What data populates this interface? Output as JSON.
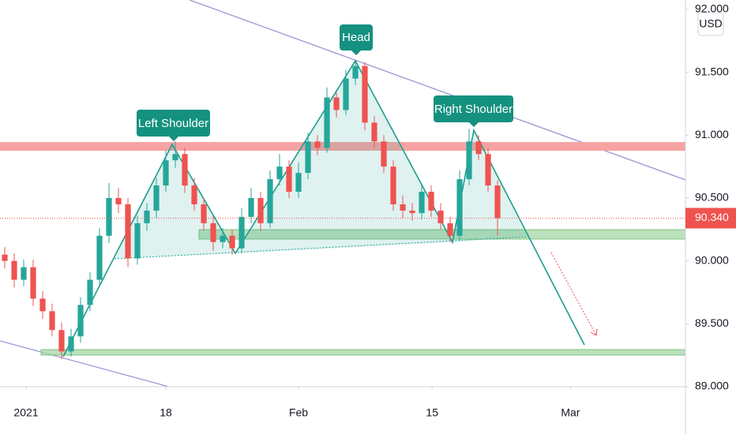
{
  "chart_data": {
    "type": "candlestick",
    "currency": "USD",
    "annotations": [
      "Left Shoulder",
      "Head",
      "Right Shoulder"
    ],
    "up_color": "#26a69a",
    "down_color": "#ef5350",
    "x": [
      0,
      1,
      2,
      3,
      4,
      5,
      6,
      7,
      8,
      9,
      10,
      11,
      12,
      13,
      14,
      15,
      16,
      17,
      18,
      19,
      20,
      21,
      22,
      23,
      24,
      25,
      26,
      27,
      28,
      29,
      30,
      31,
      32,
      33,
      34,
      35,
      36,
      37,
      38,
      39,
      40,
      41,
      42,
      43,
      44,
      45,
      46,
      47,
      48,
      49,
      50,
      51,
      52
    ],
    "open": [
      90.05,
      90.0,
      89.85,
      89.95,
      89.7,
      89.6,
      89.45,
      89.28,
      89.4,
      89.65,
      89.85,
      90.2,
      90.5,
      90.45,
      90.02,
      90.3,
      90.4,
      90.6,
      90.8,
      90.85,
      90.6,
      90.45,
      90.3,
      90.15,
      90.2,
      90.1,
      90.35,
      90.5,
      90.3,
      90.65,
      90.75,
      90.55,
      90.7,
      90.95,
      90.9,
      91.3,
      91.2,
      91.45,
      91.55,
      91.1,
      90.95,
      90.75,
      90.45,
      90.4,
      90.38,
      90.55,
      90.4,
      90.3,
      90.2,
      90.65,
      90.95,
      90.85,
      90.6
    ],
    "high": [
      90.11,
      90.06,
      90.01,
      90.01,
      89.76,
      89.66,
      89.51,
      89.46,
      89.71,
      89.91,
      90.26,
      90.62,
      90.58,
      90.5,
      90.36,
      90.46,
      90.66,
      90.88,
      90.95,
      90.9,
      90.66,
      90.5,
      90.36,
      90.26,
      90.25,
      90.42,
      90.58,
      90.55,
      90.72,
      90.85,
      90.8,
      90.78,
      91.02,
      91.0,
      91.38,
      91.34,
      91.52,
      91.6,
      91.58,
      91.15,
      91.0,
      90.8,
      90.52,
      90.46,
      90.6,
      90.6,
      90.46,
      90.35,
      90.72,
      91.05,
      91.0,
      90.9,
      90.64
    ],
    "low": [
      89.94,
      89.79,
      89.8,
      89.64,
      89.54,
      89.4,
      89.22,
      89.24,
      89.35,
      89.6,
      89.8,
      90.14,
      90.38,
      89.95,
      89.97,
      90.24,
      90.34,
      90.55,
      90.74,
      90.54,
      90.4,
      90.24,
      90.08,
      90.1,
      90.05,
      90.06,
      90.3,
      90.24,
      90.26,
      90.6,
      90.5,
      90.5,
      90.65,
      90.84,
      90.86,
      91.14,
      91.16,
      91.4,
      91.04,
      90.9,
      90.7,
      90.4,
      90.34,
      90.32,
      90.33,
      90.35,
      90.25,
      90.15,
      90.16,
      90.6,
      90.8,
      90.55,
      90.2
    ],
    "close": [
      90.0,
      89.85,
      89.95,
      89.7,
      89.6,
      89.45,
      89.28,
      89.4,
      89.65,
      89.85,
      90.2,
      90.5,
      90.45,
      90.02,
      90.3,
      90.4,
      90.6,
      90.8,
      90.85,
      90.6,
      90.45,
      90.3,
      90.15,
      90.2,
      90.1,
      90.35,
      90.5,
      90.3,
      90.65,
      90.75,
      90.55,
      90.7,
      90.95,
      90.9,
      91.3,
      91.2,
      91.45,
      91.55,
      91.1,
      90.95,
      90.75,
      90.45,
      90.4,
      90.38,
      90.55,
      90.4,
      90.3,
      90.2,
      90.65,
      90.95,
      90.85,
      90.6,
      90.34
    ],
    "last_value": 90.34,
    "last_value_label": "90.340",
    "xlim": [
      -0.5,
      71.83
    ],
    "xticks": [
      {
        "value": 2.25,
        "label": "2021"
      },
      {
        "value": 17,
        "label": "18"
      },
      {
        "value": 31,
        "label": "Feb"
      },
      {
        "value": 45.1,
        "label": "15"
      },
      {
        "value": 59.7,
        "label": "Mar"
      }
    ],
    "ylim": [
      89.0,
      92.075
    ],
    "yticks": [
      {
        "value": 89.0,
        "label": "89.000"
      },
      {
        "value": 89.5,
        "label": "89.500"
      },
      {
        "value": 90.0,
        "label": "90.000"
      },
      {
        "value": 90.5,
        "label": "90.500"
      },
      {
        "value": 91.0,
        "label": "91.000"
      },
      {
        "value": 91.5,
        "label": "91.500"
      },
      {
        "value": 92.0,
        "label": "92.000"
      }
    ],
    "grid": false
  }
}
